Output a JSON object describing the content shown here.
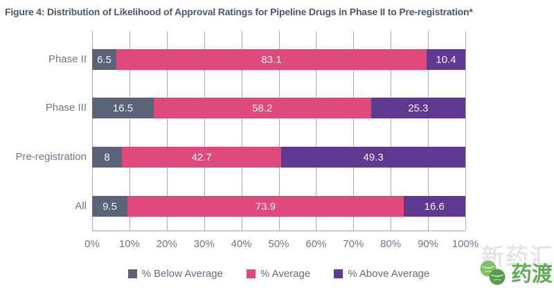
{
  "title": "Figure 4: Distribution of Likelihood of Approval Ratings for Pipeline Drugs in Phase II to Pre-registration*",
  "chart_data": {
    "type": "bar",
    "orientation": "horizontal",
    "stacked": true,
    "categories": [
      "Phase II",
      "Phase III",
      "Pre-registration",
      "All"
    ],
    "series": [
      {
        "name": "% Below Average",
        "color": "#5a6377",
        "values": [
          6.5,
          16.5,
          8,
          9.5
        ]
      },
      {
        "name": "% Average",
        "color": "#de4a7e",
        "values": [
          83.1,
          58.2,
          42.7,
          73.9
        ]
      },
      {
        "name": "% Above Average",
        "color": "#5f3990",
        "values": [
          10.4,
          25.3,
          49.3,
          16.6
        ]
      }
    ],
    "x_axis": {
      "ticks": [
        "0%",
        "10%",
        "20%",
        "30%",
        "40%",
        "50%",
        "60%",
        "70%",
        "80%",
        "90%",
        "100%"
      ],
      "min": 0,
      "max": 100,
      "grid": true
    },
    "value_labels_shown": true,
    "legend_position": "bottom"
  },
  "colors": {
    "title": "#4d5670",
    "axis_labels": "#6e7689",
    "gridline": "#a8acb2",
    "below_average": "#5a6377",
    "average": "#de4a7e",
    "above_average": "#5f3990",
    "watermark_green": "#5fae57"
  },
  "watermark": {
    "background_text": "新药汇",
    "logo_text": "药渡"
  }
}
